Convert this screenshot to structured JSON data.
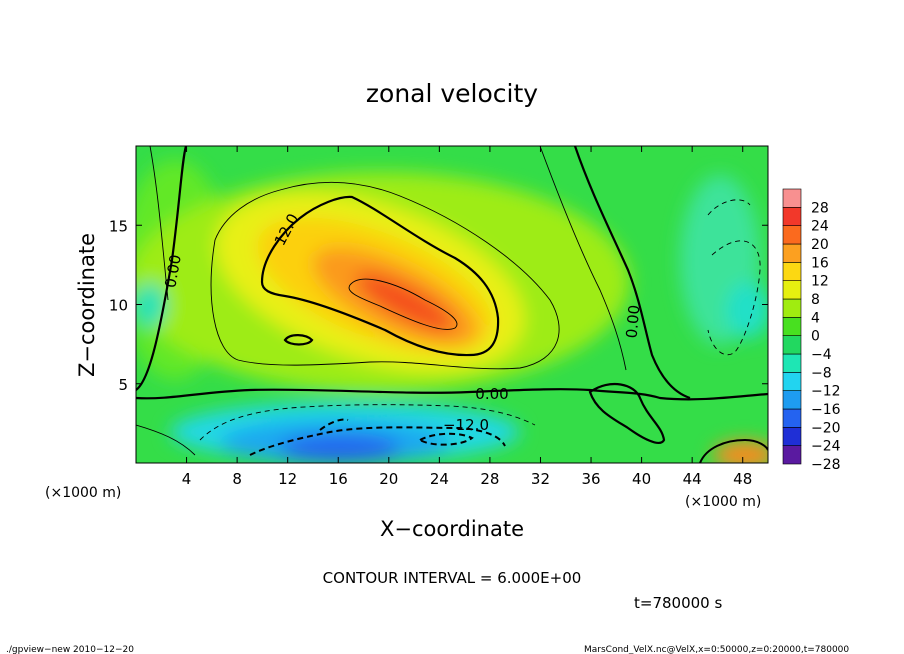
{
  "chart_data": {
    "type": "heatmap",
    "title": "zonal velocity",
    "xlabel": "X−coordinate",
    "ylabel": "Z−coordinate",
    "x_unit": "(×1000 m)",
    "x_unit_left": "(×1000 m)",
    "xlim": [
      0,
      50
    ],
    "ylim": [
      0,
      20
    ],
    "x_ticks": [
      4,
      8,
      12,
      16,
      20,
      24,
      28,
      32,
      36,
      40,
      44,
      48
    ],
    "y_ticks": [
      5,
      10,
      15
    ],
    "colorbar": {
      "levels": [
        -28,
        -24,
        -20,
        -16,
        -12,
        -8,
        -4,
        0,
        4,
        8,
        12,
        16,
        20,
        24,
        28
      ],
      "tick_labels": [
        "28",
        "24",
        "20",
        "16",
        "12",
        "8",
        "4",
        "0",
        "−4",
        "−8",
        "−12",
        "−16",
        "−20",
        "−24",
        "−28"
      ],
      "colors": [
        "#5a1aa0",
        "#1f2fd6",
        "#2463f0",
        "#1e9cf0",
        "#22d4f0",
        "#1ee6b4",
        "#22d860",
        "#48e020",
        "#a0ec10",
        "#e6f010",
        "#fcd812",
        "#fca020",
        "#fb6a1e",
        "#f2382a",
        "#f89090"
      ]
    },
    "contour_labels": [
      "12.0",
      "0.00",
      "0.00",
      "−12.0",
      "0.00"
    ],
    "features": [
      {
        "kind": "max",
        "x": 22,
        "z": 10,
        "value": 22
      },
      {
        "kind": "min",
        "x": 23,
        "z": 2,
        "value": -18
      }
    ],
    "annotation": "CONTOUR INTERVAL = 6.000E+00",
    "time_label": "t=780000 s"
  },
  "footer": {
    "left": "./gpview−new  2010−12−20",
    "right": "MarsCond_VelX.nc@VelX,x=0:50000,z=0:20000,t=780000"
  }
}
